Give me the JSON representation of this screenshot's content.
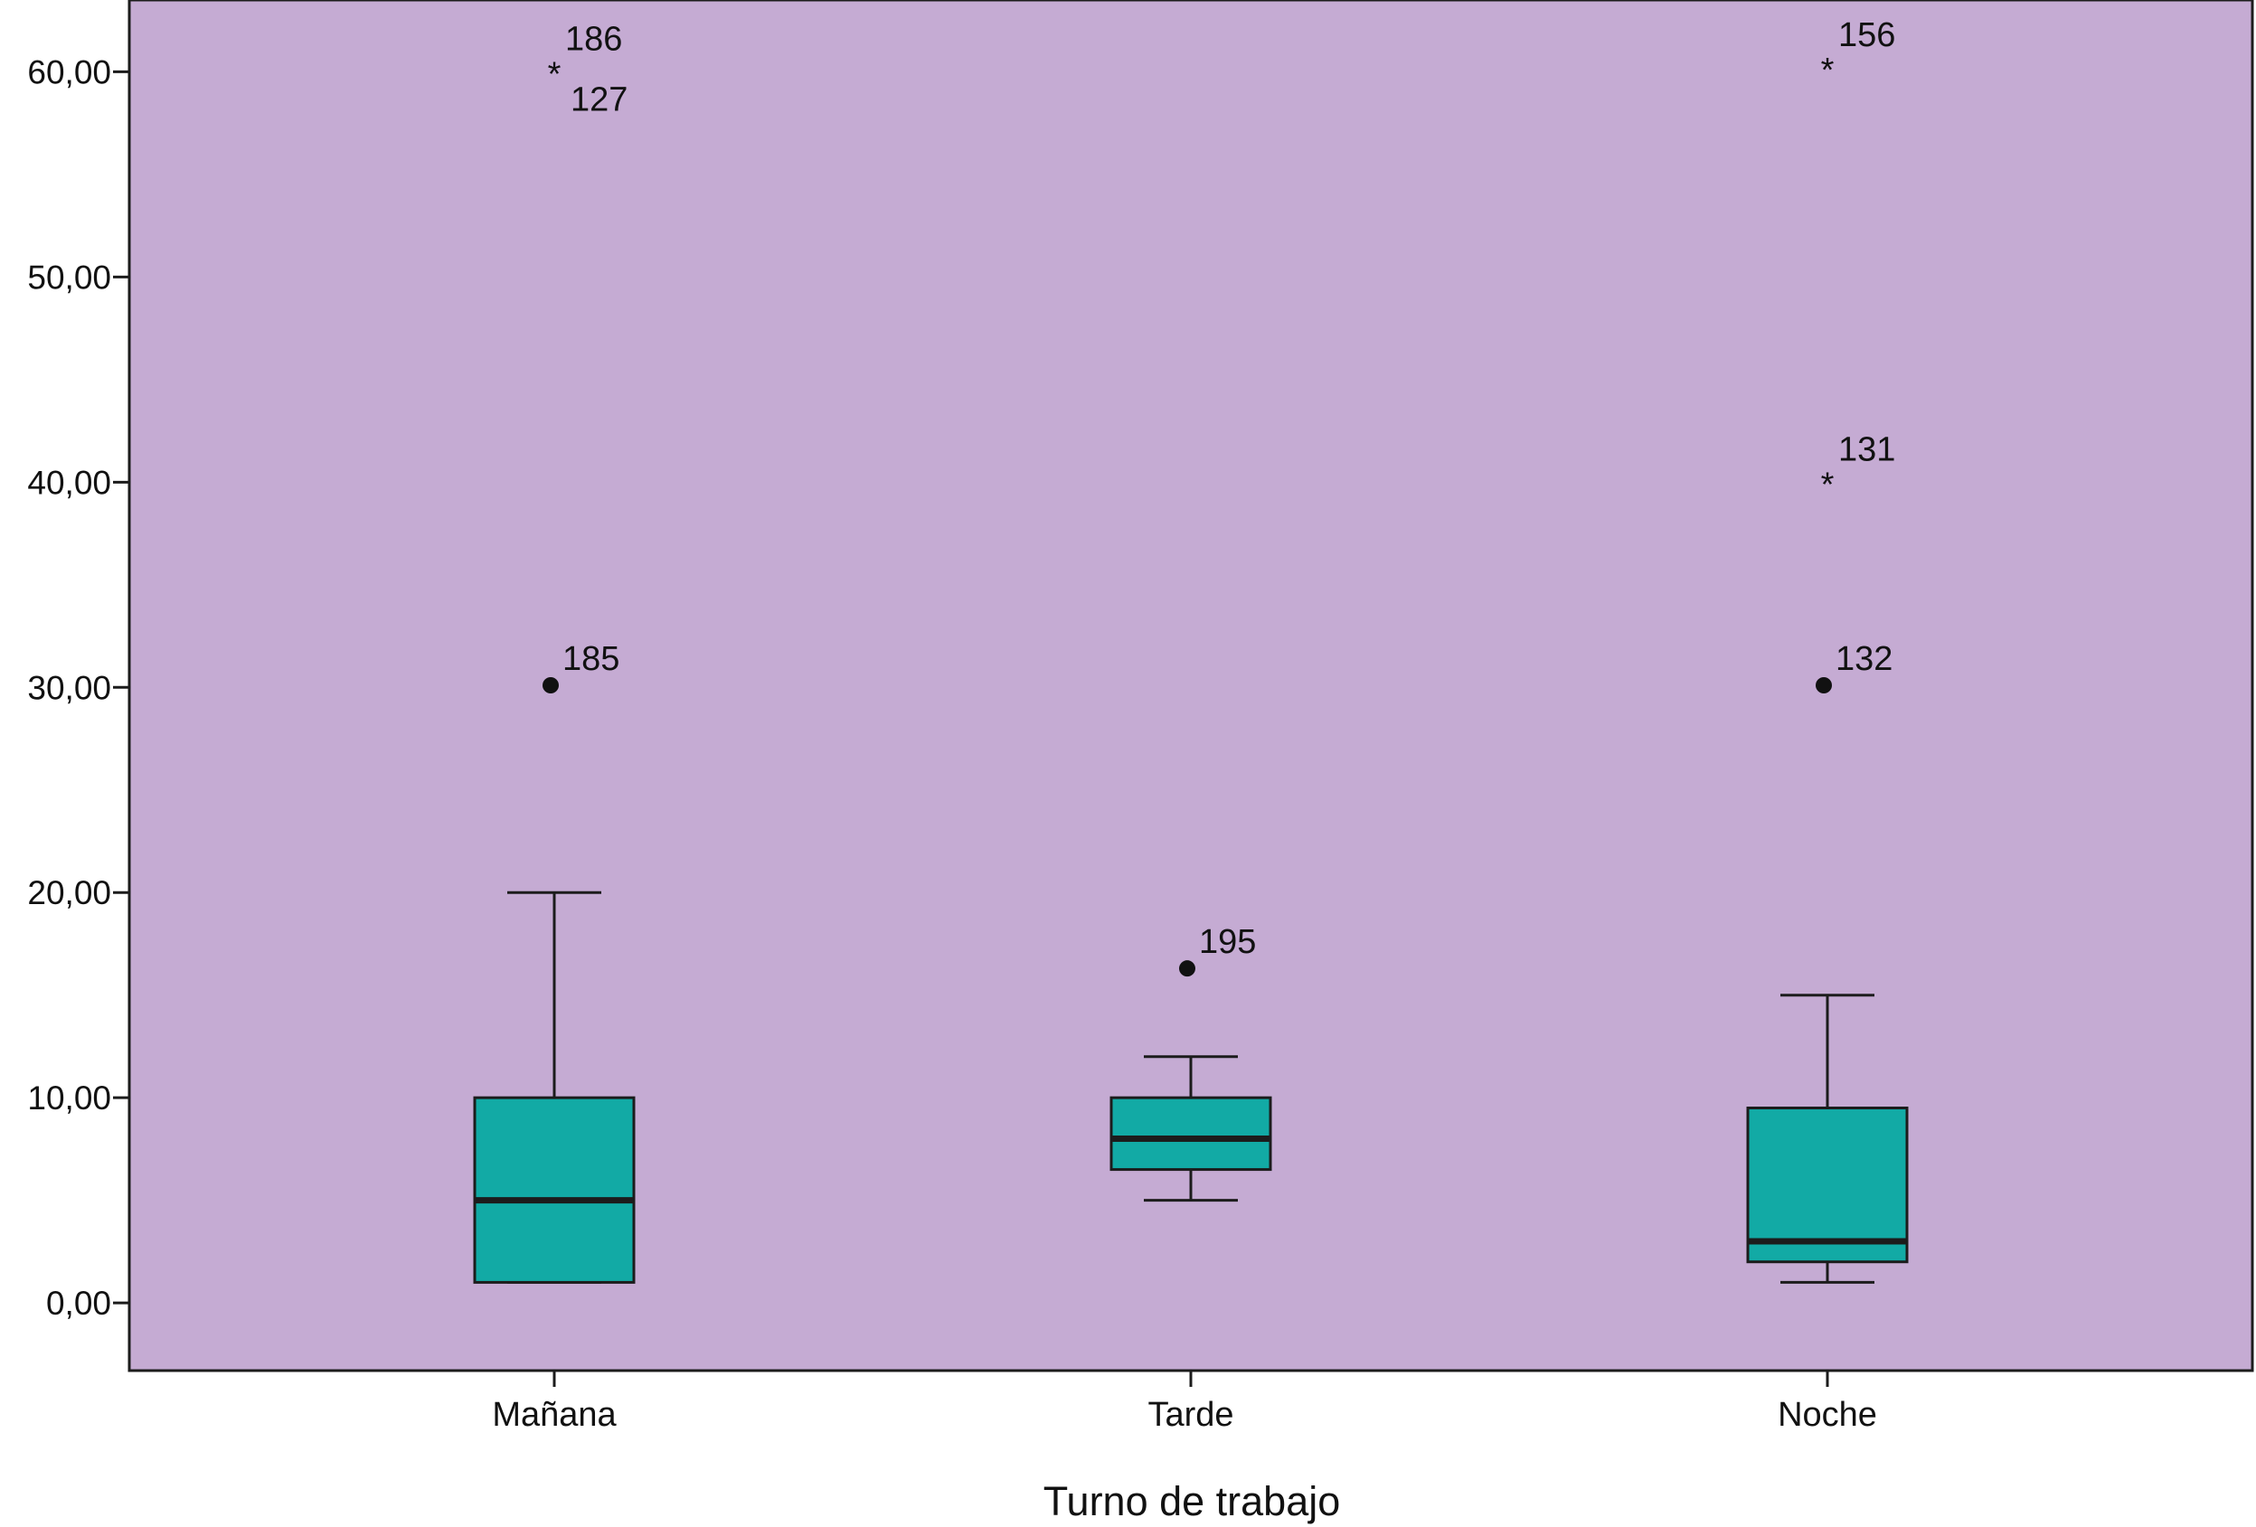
{
  "chart_data": {
    "type": "boxplot",
    "xlabel": "Turno de trabajo",
    "ylabel": "",
    "ylim": [
      -3.3,
      63.5
    ],
    "yticks": [
      "0,00",
      "10,00",
      "20,00",
      "30,00",
      "40,00",
      "50,00",
      "60,00"
    ],
    "ytick_values": [
      0,
      10,
      20,
      30,
      40,
      50,
      60
    ],
    "categories": [
      "Mañana",
      "Tarde",
      "Noche"
    ],
    "boxes": [
      {
        "category": "Mañana",
        "min": 1,
        "q1": 1,
        "median": 5,
        "q3": 10,
        "max": 20
      },
      {
        "category": "Tarde",
        "min": 5,
        "q1": 6.5,
        "median": 8,
        "q3": 10,
        "max": 12
      },
      {
        "category": "Noche",
        "min": 1,
        "q1": 2,
        "median": 3,
        "q3": 9.5,
        "max": 15
      }
    ],
    "outliers": [
      {
        "category": "Mañana",
        "value": 60.3,
        "marker": "*",
        "label": "186"
      },
      {
        "category": "Mañana",
        "value": 60.3,
        "marker": "*",
        "label": "127"
      },
      {
        "category": "Mañana",
        "value": 30.1,
        "marker": "o",
        "label": "185"
      },
      {
        "category": "Tarde",
        "value": 16.3,
        "marker": "o",
        "label": "195"
      },
      {
        "category": "Noche",
        "value": 60.5,
        "marker": "*",
        "label": "156"
      },
      {
        "category": "Noche",
        "value": 40.3,
        "marker": "*",
        "label": "131"
      },
      {
        "category": "Noche",
        "value": 30.1,
        "marker": "o",
        "label": "132"
      }
    ],
    "colors": {
      "plot_background": "#c5abd3",
      "box_fill": "#12aaa5",
      "stroke": "#1c1c1c"
    }
  }
}
